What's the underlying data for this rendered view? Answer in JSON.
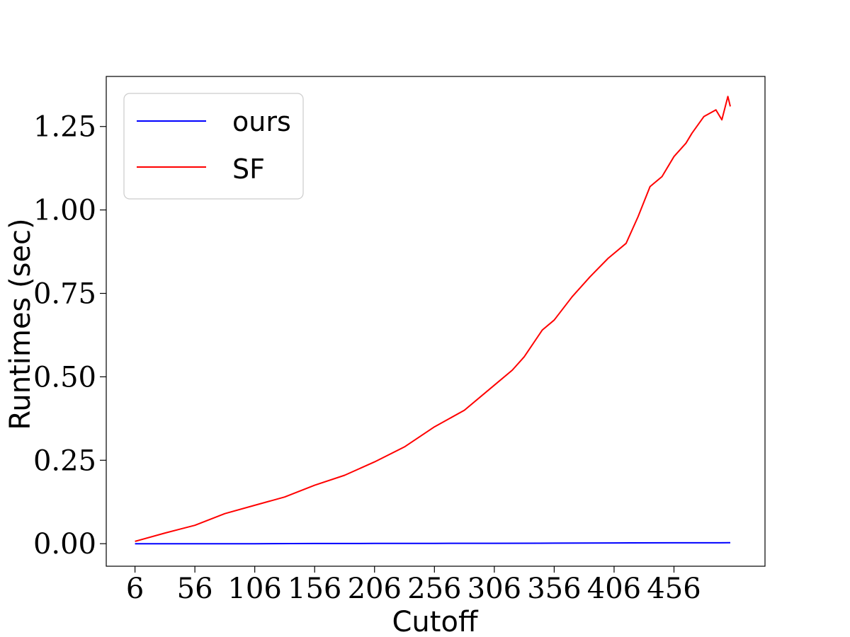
{
  "chart_data": {
    "type": "line",
    "xlabel": "Cutoff",
    "ylabel": "Runtimes (sec)",
    "xlim": [
      -18,
      532
    ],
    "ylim": [
      -0.0675,
      1.4
    ],
    "x_ticks": [
      6,
      56,
      106,
      156,
      206,
      256,
      306,
      356,
      406,
      456
    ],
    "y_ticks": [
      0.0,
      0.25,
      0.5,
      0.75,
      1.0,
      1.25
    ],
    "y_tick_labels": [
      "0.00",
      "0.25",
      "0.50",
      "0.75",
      "1.00",
      "1.25"
    ],
    "grid": false,
    "legend_position": "top-left",
    "series": [
      {
        "name": "ours",
        "color": "#0000ff",
        "x": [
          6,
          56,
          106,
          156,
          206,
          256,
          306,
          356,
          406,
          456,
          503
        ],
        "y": [
          0.0,
          0.0,
          0.0,
          0.0005,
          0.0007,
          0.001,
          0.0013,
          0.0017,
          0.0022,
          0.0027,
          0.003
        ]
      },
      {
        "name": "SF",
        "color": "#ff0000",
        "x": [
          6,
          31,
          56,
          81,
          106,
          131,
          156,
          181,
          206,
          231,
          256,
          281,
          306,
          321,
          331,
          346,
          356,
          371,
          386,
          401,
          416,
          426,
          436,
          446,
          456,
          466,
          471,
          481,
          491,
          496,
          501,
          503
        ],
        "y": [
          0.007,
          0.032,
          0.055,
          0.09,
          0.115,
          0.14,
          0.175,
          0.205,
          0.245,
          0.29,
          0.35,
          0.4,
          0.475,
          0.52,
          0.56,
          0.64,
          0.67,
          0.74,
          0.8,
          0.855,
          0.9,
          0.98,
          1.07,
          1.1,
          1.16,
          1.2,
          1.23,
          1.28,
          1.3,
          1.27,
          1.34,
          1.31
        ]
      }
    ]
  }
}
